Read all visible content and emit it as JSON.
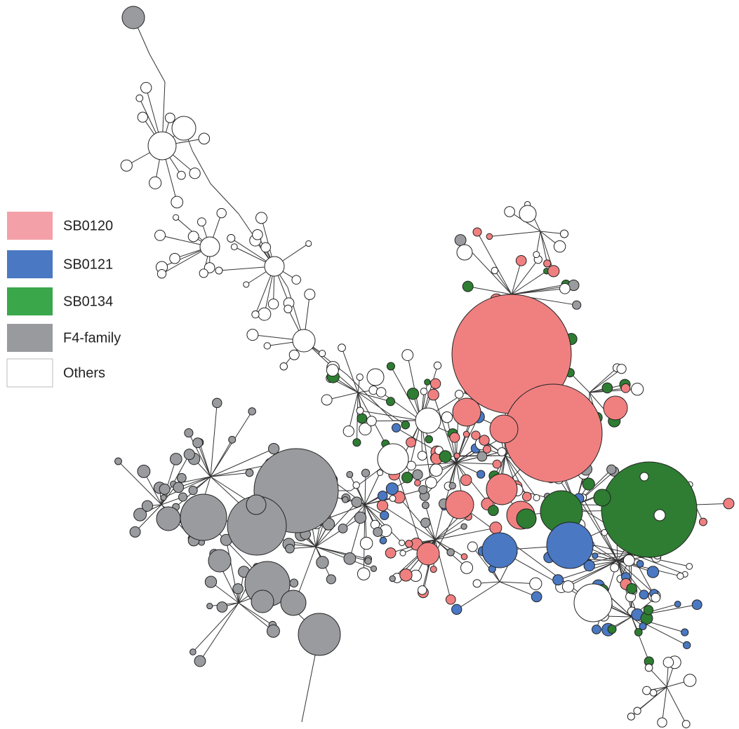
{
  "legend": {
    "items": [
      {
        "label": "SB0120",
        "color": "#f4a0a8"
      },
      {
        "label": "SB0121",
        "color": "#4a78c2"
      },
      {
        "label": "SB0134",
        "color": "#3aa84a"
      },
      {
        "label": "F4-family",
        "color": "#999a9e"
      },
      {
        "label": "Others",
        "color": "#ffffff"
      }
    ]
  }
}
